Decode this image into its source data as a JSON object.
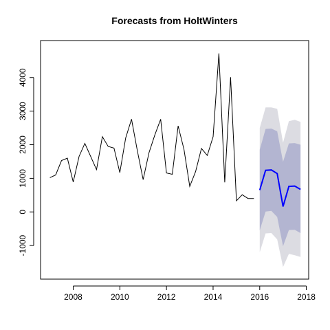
{
  "chart_data": {
    "type": "line",
    "title": "Forecasts from HoltWinters",
    "xlabel": "",
    "ylabel": "",
    "xlim": [
      2006.6,
      2018.1
    ],
    "ylim": [
      -2000,
      5100
    ],
    "x_ticks": [
      2008,
      2010,
      2012,
      2014,
      2016,
      2018
    ],
    "x_tick_labels": [
      "2008",
      "2010",
      "2012",
      "2014",
      "2016",
      "2018"
    ],
    "y_ticks": [
      -1000,
      0,
      1000,
      2000,
      3000,
      4000
    ],
    "y_tick_labels": [
      "-1000",
      "0",
      "1000",
      "2000",
      "3000",
      "4000"
    ],
    "grid": false,
    "series": [
      {
        "role": "history",
        "color": "#000000",
        "x": [
          2007.0,
          2007.25,
          2007.5,
          2007.75,
          2008.0,
          2008.25,
          2008.5,
          2008.75,
          2009.0,
          2009.25,
          2009.5,
          2009.75,
          2010.0,
          2010.25,
          2010.5,
          2010.75,
          2011.0,
          2011.25,
          2011.5,
          2011.75,
          2012.0,
          2012.25,
          2012.5,
          2012.75,
          2013.0,
          2013.25,
          2013.5,
          2013.75,
          2014.0,
          2014.25,
          2014.5,
          2014.75,
          2015.0,
          2015.25,
          2015.5,
          2015.75
        ],
        "values": [
          1020,
          1100,
          1530,
          1600,
          890,
          1650,
          2040,
          1650,
          1260,
          2240,
          1950,
          1900,
          1170,
          2200,
          2760,
          1830,
          960,
          1760,
          2290,
          2760,
          1160,
          1120,
          2560,
          1860,
          760,
          1200,
          1890,
          1680,
          2240,
          4720,
          880,
          4010,
          330,
          510,
          400,
          400
        ]
      },
      {
        "role": "forecast",
        "color": "#0000ff",
        "x": [
          2016.0,
          2016.25,
          2016.5,
          2016.75,
          2017.0,
          2017.25,
          2017.5,
          2017.75
        ],
        "values": [
          650,
          1240,
          1250,
          1140,
          160,
          760,
          770,
          670
        ]
      }
    ],
    "intervals": [
      {
        "level": "95",
        "color": "#dcdce2",
        "x": [
          2016.0,
          2016.25,
          2016.5,
          2016.75,
          2017.0,
          2017.25,
          2017.5,
          2017.75
        ],
        "lower": [
          -1200,
          -640,
          -630,
          -820,
          -1640,
          -1250,
          -1290,
          -1340
        ],
        "upper": [
          2500,
          3110,
          3110,
          3070,
          2060,
          2700,
          2740,
          2680
        ]
      },
      {
        "level": "80",
        "color": "#b3b5d1",
        "x": [
          2016.0,
          2016.25,
          2016.5,
          2016.75,
          2017.0,
          2017.25,
          2017.5,
          2017.75
        ],
        "lower": [
          -550,
          10,
          30,
          -150,
          -1020,
          -540,
          -530,
          -630
        ],
        "upper": [
          1850,
          2470,
          2480,
          2400,
          1490,
          2040,
          2050,
          2000
        ]
      }
    ]
  }
}
